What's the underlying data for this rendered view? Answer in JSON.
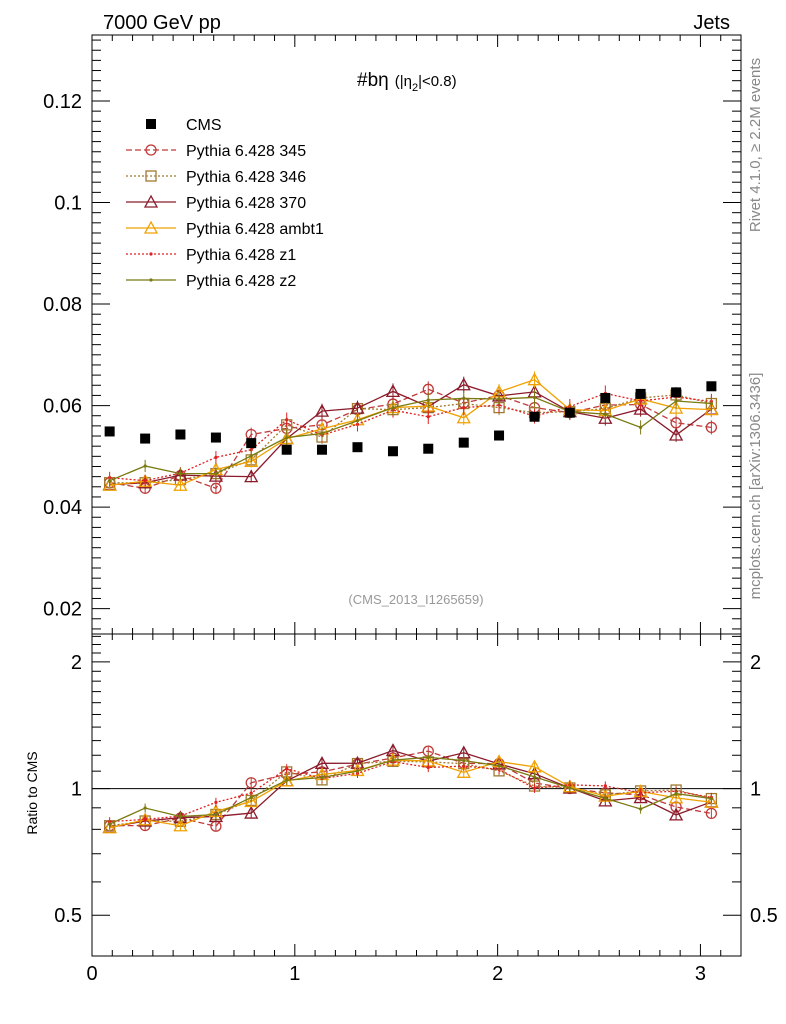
{
  "header": {
    "left": "7000 GeV pp",
    "right": "Jets"
  },
  "side_labels": {
    "rivet": "Rivet 4.1.0, ≥ 2.2M events",
    "mcplots": "mcplots.cern.ch [arXiv:1306.3436]"
  },
  "plot_title": {
    "main": "#bη",
    "cut": "(|η",
    "sub": "2",
    "cut_end": "|<0.8)"
  },
  "analysis_tag": "(CMS_2013_I1265659)",
  "chart_data": {
    "type": "scatter",
    "title": "#bη (|η2|<0.8)",
    "xlabel": "",
    "ylabel": "",
    "ratio_ylabel": "Ratio to CMS",
    "xlim": [
      0,
      3.2
    ],
    "ylim": [
      0.015,
      0.133
    ],
    "ratio_ylim": [
      0.4,
      2.33
    ],
    "x_ticks": [
      0,
      1,
      2,
      3
    ],
    "y_ticks": [
      0.02,
      0.04,
      0.06,
      0.08,
      0.1,
      0.12
    ],
    "y_tick_labels": [
      "0.02",
      "0.04",
      "0.06",
      "0.08",
      "0.1",
      "0.12"
    ],
    "ratio_ticks": [
      0.5,
      1,
      2
    ],
    "ratio_tick_labels": [
      "0.5",
      "1",
      "2"
    ],
    "x": [
      0.087,
      0.262,
      0.436,
      0.611,
      0.785,
      0.96,
      1.134,
      1.309,
      1.484,
      1.658,
      1.833,
      2.007,
      2.182,
      2.356,
      2.531,
      2.705,
      2.88,
      3.054
    ],
    "series": [
      {
        "name": "CMS",
        "color": "#000000",
        "marker": "square",
        "line": "none",
        "values": [
          0.0549,
          0.0535,
          0.0543,
          0.0537,
          0.0526,
          0.0513,
          0.0513,
          0.0518,
          0.051,
          0.0515,
          0.0527,
          0.0541,
          0.0578,
          0.0586,
          0.0615,
          0.0623,
          0.0626,
          0.0638
        ]
      },
      {
        "name": "Pythia 6.428 345",
        "color": "#c03a3a",
        "marker": "circle",
        "line": "dashed",
        "values": [
          0.0448,
          0.0437,
          0.0462,
          0.0437,
          0.0543,
          0.0555,
          0.0562,
          0.0592,
          0.0603,
          0.0632,
          0.0605,
          0.062,
          0.0596,
          0.0586,
          0.0601,
          0.0602,
          0.0566,
          0.0557
        ]
      },
      {
        "name": "Pythia 6.428 346",
        "color": "#a07a30",
        "marker": "square-open",
        "line": "dotted",
        "values": [
          0.0448,
          0.0448,
          0.0454,
          0.0466,
          0.0493,
          0.0562,
          0.0538,
          0.0594,
          0.0592,
          0.0596,
          0.0604,
          0.0596,
          0.0586,
          0.0588,
          0.0594,
          0.0615,
          0.0621,
          0.0604
        ]
      },
      {
        "name": "Pythia 6.428 370",
        "color": "#8b1a2a",
        "marker": "triangle-open",
        "line": "solid",
        "values": [
          0.0444,
          0.0448,
          0.0463,
          0.0461,
          0.046,
          0.0535,
          0.0589,
          0.0595,
          0.0628,
          0.0598,
          0.0641,
          0.0619,
          0.0627,
          0.0588,
          0.0575,
          0.0593,
          0.0542,
          0.0593
        ]
      },
      {
        "name": "Pythia 6.428 ambt1",
        "color": "#f0a000",
        "marker": "triangle-open",
        "line": "solid",
        "values": [
          0.0443,
          0.0451,
          0.0443,
          0.0474,
          0.049,
          0.0535,
          0.0554,
          0.0572,
          0.0596,
          0.0599,
          0.0576,
          0.0627,
          0.0651,
          0.0592,
          0.059,
          0.0613,
          0.0595,
          0.0592
        ]
      },
      {
        "name": "Pythia 6.428 z1",
        "color": "#e02020",
        "marker": "dot",
        "line": "dotted",
        "values": [
          0.0458,
          0.0452,
          0.0467,
          0.0498,
          0.0513,
          0.0572,
          0.0542,
          0.0563,
          0.0591,
          0.0578,
          0.0596,
          0.0601,
          0.0579,
          0.0598,
          0.0624,
          0.0609,
          0.0617,
          0.0608
        ]
      },
      {
        "name": "Pythia 6.428 z2",
        "color": "#7a7a10",
        "marker": "dot",
        "line": "solid",
        "values": [
          0.0452,
          0.0481,
          0.0466,
          0.0466,
          0.0501,
          0.0537,
          0.0545,
          0.057,
          0.0596,
          0.0611,
          0.0614,
          0.0613,
          0.0616,
          0.0588,
          0.0583,
          0.0557,
          0.0609,
          0.0604
        ]
      }
    ],
    "legend_position": "top-left"
  }
}
